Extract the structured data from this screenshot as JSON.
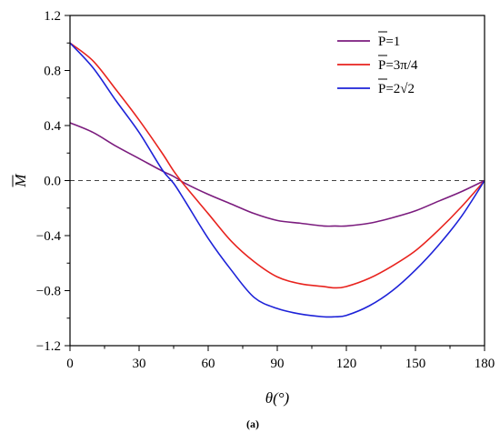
{
  "chart_data": {
    "type": "line",
    "xlabel": "θ(°)",
    "ylabel": "M",
    "caption": "(a)",
    "xlim": [
      0,
      180
    ],
    "ylim": [
      -1.2,
      1.2
    ],
    "xticks": [
      0,
      30,
      60,
      90,
      120,
      150,
      180
    ],
    "xtick_labels": [
      "0",
      "30",
      "60",
      "90",
      "120",
      "150",
      "180"
    ],
    "yticks": [
      -1.2,
      -0.8,
      -0.4,
      0.0,
      0.4,
      0.8,
      1.2
    ],
    "ytick_labels": [
      "−1.2",
      "−0.8",
      "−0.4",
      "0.0",
      "0.4",
      "0.8",
      "1.2"
    ],
    "reference_line": {
      "y": 0,
      "style": "dashed"
    },
    "legend_position": "top-right",
    "x": [
      0,
      10,
      20,
      30,
      40,
      45,
      50,
      60,
      70,
      80,
      90,
      100,
      110,
      115,
      120,
      130,
      140,
      150,
      160,
      170,
      180
    ],
    "series": [
      {
        "name": "P=1",
        "legend_main": "P",
        "legend_suffix": "=1",
        "color": "#7b1c7e",
        "values": [
          0.42,
          0.35,
          0.25,
          0.16,
          0.07,
          0.03,
          -0.02,
          -0.1,
          -0.17,
          -0.24,
          -0.29,
          -0.31,
          -0.33,
          -0.33,
          -0.33,
          -0.31,
          -0.27,
          -0.22,
          -0.15,
          -0.08,
          0.0
        ]
      },
      {
        "name": "P=3π/4",
        "legend_main": "P",
        "legend_suffix": "=3π/4",
        "color": "#e8231e",
        "values": [
          1.0,
          0.87,
          0.66,
          0.44,
          0.2,
          0.07,
          -0.04,
          -0.24,
          -0.44,
          -0.59,
          -0.7,
          -0.75,
          -0.77,
          -0.78,
          -0.77,
          -0.71,
          -0.62,
          -0.51,
          -0.36,
          -0.19,
          0.0
        ]
      },
      {
        "name": "P=2√2",
        "legend_main": "P",
        "legend_suffix": "=2√2",
        "color": "#1d22d8",
        "values": [
          1.0,
          0.82,
          0.58,
          0.35,
          0.08,
          -0.02,
          -0.15,
          -0.42,
          -0.65,
          -0.85,
          -0.93,
          -0.97,
          -0.99,
          -0.99,
          -0.98,
          -0.91,
          -0.8,
          -0.65,
          -0.47,
          -0.26,
          0.0
        ]
      }
    ]
  }
}
